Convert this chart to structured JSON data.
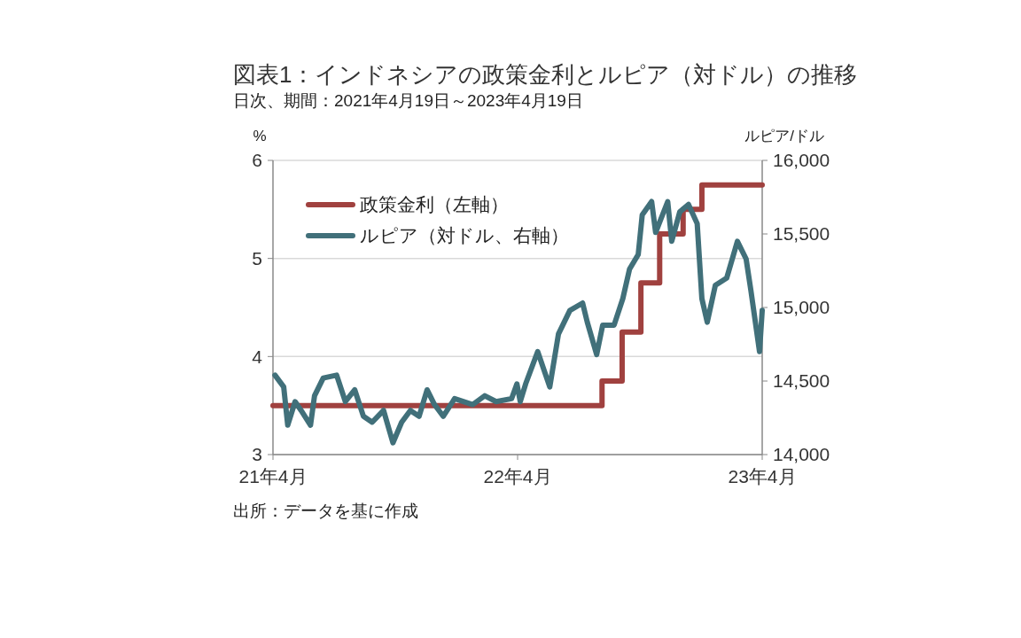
{
  "chart_data": {
    "type": "line",
    "title": "図表1：インドネシアの政策金利とルピア（対ドル）の推移",
    "subtitle": "日次、期間：2021年4月19日～2023年4月19日",
    "ylabel": "%",
    "y2label": "ルピア/ドル",
    "annotations": [
      "出所：データを基に作成"
    ],
    "series": [
      {
        "name": "政策金利（左軸）",
        "type": "step",
        "color": "#a0413f",
        "x": [
          "2021-04-19",
          "2022-08-23",
          "2022-09-22",
          "2022-10-20",
          "2022-11-17",
          "2022-12-22",
          "2023-01-19",
          "2023-04-19"
        ],
        "values": [
          3.5,
          3.75,
          4.25,
          4.75,
          5.25,
          5.5,
          5.75,
          5.75
        ]
      },
      {
        "name": "ルピア（対ドル、右軸）",
        "type": "line",
        "axis": "y2",
        "color": "#41707a",
        "x": [
          "2021-04-22",
          "2021-05-05",
          "2021-05-11",
          "2021-05-22",
          "2021-05-31",
          "2021-06-14",
          "2021-06-20",
          "2021-07-03",
          "2021-07-23",
          "2021-08-05",
          "2021-08-19",
          "2021-09-01",
          "2021-09-14",
          "2021-10-01",
          "2021-10-15",
          "2021-10-28",
          "2021-11-10",
          "2021-11-23",
          "2021-12-05",
          "2021-12-16",
          "2021-12-29",
          "2022-01-15",
          "2022-02-11",
          "2022-03-01",
          "2022-03-18",
          "2022-04-10",
          "2022-04-18",
          "2022-04-23",
          "2022-05-01",
          "2022-05-19",
          "2022-06-06",
          "2022-06-19",
          "2022-07-06",
          "2022-07-25",
          "2022-08-01",
          "2022-08-15",
          "2022-08-24",
          "2022-09-10",
          "2022-09-23",
          "2022-10-03",
          "2022-10-16",
          "2022-10-22",
          "2022-11-05",
          "2022-11-11",
          "2022-11-29",
          "2022-12-05",
          "2022-12-17",
          "2022-12-30",
          "2023-01-12",
          "2023-01-19",
          "2023-01-27",
          "2023-02-08",
          "2023-02-25",
          "2023-03-13",
          "2023-03-26",
          "2023-04-02",
          "2023-04-15",
          "2023-04-19"
        ],
        "values": [
          14540,
          14460,
          14200,
          14360,
          14300,
          14200,
          14400,
          14520,
          14540,
          14360,
          14440,
          14260,
          14220,
          14300,
          14080,
          14220,
          14300,
          14260,
          14440,
          14340,
          14260,
          14380,
          14340,
          14400,
          14360,
          14380,
          14480,
          14360,
          14480,
          14700,
          14460,
          14820,
          14980,
          15030,
          14900,
          14680,
          14880,
          14880,
          15060,
          15260,
          15360,
          15630,
          15720,
          15510,
          15720,
          15450,
          15650,
          15700,
          15570,
          15060,
          14900,
          15150,
          15200,
          15450,
          15330,
          15120,
          14700,
          14980
        ]
      }
    ],
    "xlim": [
      "2021-04-19",
      "2023-04-19"
    ],
    "xticks": [
      {
        "value": "2021-04-19",
        "label": "21年4月"
      },
      {
        "value": "2022-04-19",
        "label": "22年4月"
      },
      {
        "value": "2023-04-19",
        "label": "23年4月"
      }
    ],
    "ylim": [
      3,
      6
    ],
    "yticks": [
      3,
      4,
      5,
      6
    ],
    "y2lim": [
      14000,
      16000
    ],
    "y2ticks": [
      {
        "value": 14000,
        "label": "14,000"
      },
      {
        "value": 14500,
        "label": "14,500"
      },
      {
        "value": 15000,
        "label": "15,000"
      },
      {
        "value": 15500,
        "label": "15,500"
      },
      {
        "value": 16000,
        "label": "16,000"
      }
    ],
    "grid": "y",
    "legend": "top left"
  }
}
